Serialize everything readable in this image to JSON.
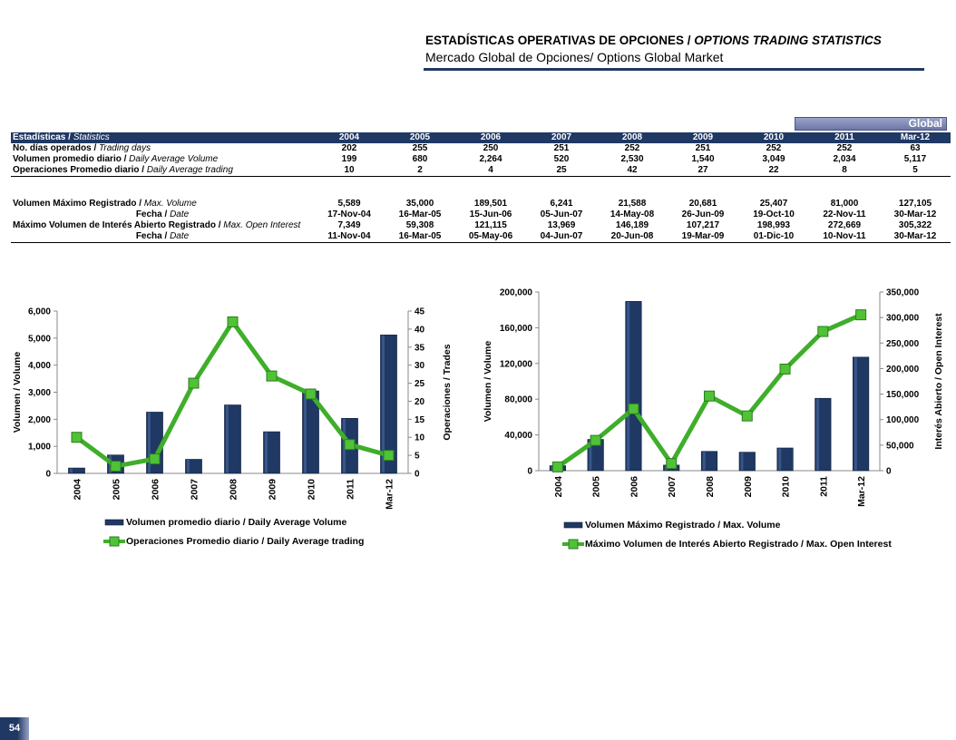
{
  "header": {
    "title_es": "ESTADÍSTICAS OPERATIVAS DE OPCIONES / ",
    "title_en": "OPTIONS TRADING STATISTICS",
    "subtitle": "Mercado Global de Opciones/ Options Global Market"
  },
  "global_tab": "Global",
  "table": {
    "header_es": "Estadísticas / ",
    "header_en": "Statistics",
    "years": [
      "2004",
      "2005",
      "2006",
      "2007",
      "2008",
      "2009",
      "2010",
      "2011",
      "Mar-12"
    ],
    "rows": [
      {
        "es": "No. días operados / ",
        "en": "Trading days",
        "values": [
          "202",
          "255",
          "250",
          "251",
          "252",
          "251",
          "252",
          "252",
          "63"
        ]
      },
      {
        "es": "Volumen promedio diario / ",
        "en": "Daily Average Volume",
        "values": [
          "199",
          "680",
          "2,264",
          "520",
          "2,530",
          "1,540",
          "3,049",
          "2,034",
          "5,117"
        ]
      },
      {
        "es": "Operaciones Promedio diario / ",
        "en": "Daily Average trading",
        "values": [
          "10",
          "2",
          "4",
          "25",
          "42",
          "27",
          "22",
          "8",
          "5"
        ]
      }
    ],
    "rows2": [
      {
        "es": "Volumen Máximo Registrado / ",
        "en": "Max. Volume",
        "values": [
          "5,589",
          "35,000",
          "189,501",
          "6,241",
          "21,588",
          "20,681",
          "25,407",
          "81,000",
          "127,105"
        ]
      },
      {
        "es": "Fecha / ",
        "en": "Date",
        "values": [
          "17-Nov-04",
          "16-Mar-05",
          "15-Jun-06",
          "05-Jun-07",
          "14-May-08",
          "26-Jun-09",
          "19-Oct-10",
          "22-Nov-11",
          "30-Mar-12"
        ]
      },
      {
        "es": "Máximo Volumen de Interés Abierto Registrado / ",
        "en": "Max. Open Interest",
        "values": [
          "7,349",
          "59,308",
          "121,115",
          "13,969",
          "146,189",
          "107,217",
          "198,993",
          "272,669",
          "305,322"
        ]
      },
      {
        "es": "Fecha / ",
        "en": "Date",
        "values": [
          "11-Nov-04",
          "16-Mar-05",
          "05-May-06",
          "04-Jun-07",
          "20-Jun-08",
          "19-Mar-09",
          "01-Dic-10",
          "10-Nov-11",
          "30-Mar-12"
        ]
      }
    ]
  },
  "chart_data": [
    {
      "type": "bar",
      "categories": [
        "2004",
        "2005",
        "2006",
        "2007",
        "2008",
        "2009",
        "2010",
        "2011",
        "Mar-12"
      ],
      "series": [
        {
          "name": "Volumen promedio diario / Daily Average  Volume",
          "kind": "bar",
          "axis": "left",
          "color": "#1f3864",
          "values": [
            199,
            680,
            2264,
            520,
            2530,
            1540,
            3049,
            2034,
            5117
          ]
        },
        {
          "name": "Operaciones Promedio diario / Daily Average trading",
          "kind": "line",
          "axis": "right",
          "color": "#3fae2a",
          "values": [
            10,
            2,
            4,
            25,
            42,
            27,
            22,
            8,
            5
          ]
        }
      ],
      "ylabel": "Volumen / Volume",
      "y2label": "Operaciones / Trades",
      "ylim": [
        0,
        6000
      ],
      "yticks": [
        "0",
        "1,000",
        "2,000",
        "3,000",
        "4,000",
        "5,000",
        "6,000"
      ],
      "y2lim": [
        0,
        45
      ],
      "y2ticks": [
        "0",
        "5",
        "10",
        "15",
        "20",
        "25",
        "30",
        "35",
        "40",
        "45"
      ],
      "legend": "bottom"
    },
    {
      "type": "bar",
      "categories": [
        "2004",
        "2005",
        "2006",
        "2007",
        "2008",
        "2009",
        "2010",
        "2011",
        "Mar-12"
      ],
      "series": [
        {
          "name": "Volumen Máximo Registrado  / Max. Volume",
          "kind": "bar",
          "axis": "left",
          "color": "#1f3864",
          "values": [
            5589,
            35000,
            189501,
            6241,
            21588,
            20681,
            25407,
            81000,
            127105
          ]
        },
        {
          "name": "Máximo Volumen de Interés Abierto Registrado  / Max. Open Interest",
          "kind": "line",
          "axis": "right",
          "color": "#3fae2a",
          "values": [
            7349,
            59308,
            121115,
            13969,
            146189,
            107217,
            198993,
            272669,
            305322
          ]
        }
      ],
      "ylabel": "Volumen / Volume",
      "y2label": "Interés Abierto / Open Interest",
      "ylim": [
        0,
        200000
      ],
      "yticks": [
        "0",
        "40,000",
        "80,000",
        "120,000",
        "160,000",
        "200,000"
      ],
      "y2lim": [
        0,
        350000
      ],
      "y2ticks": [
        "0",
        "50,000",
        "100,000",
        "150,000",
        "200,000",
        "250,000",
        "300,000",
        "350,000"
      ],
      "legend": "bottom"
    }
  ],
  "page_number": "54"
}
